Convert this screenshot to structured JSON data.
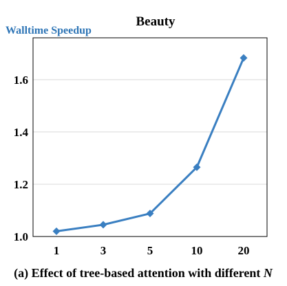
{
  "chart_data": {
    "type": "line",
    "title": "Beauty",
    "ylabel": "Walltime Speedup",
    "xlabel": "",
    "categories": [
      "1",
      "3",
      "5",
      "10",
      "20"
    ],
    "series": [
      {
        "values": [
          1.02,
          1.045,
          1.088,
          1.265,
          1.683
        ]
      }
    ],
    "ylim": [
      1.0,
      1.76
    ],
    "yticks": [
      "1.0",
      "1.2",
      "1.4",
      "1.6"
    ],
    "grid": "horizontal",
    "marker": "diamond",
    "line_color": "#3a7fc1",
    "ylabel_color": "#2e75b6",
    "caption": {
      "prefix": "(a) Effect of tree-based attention with different ",
      "variable": "N"
    }
  }
}
